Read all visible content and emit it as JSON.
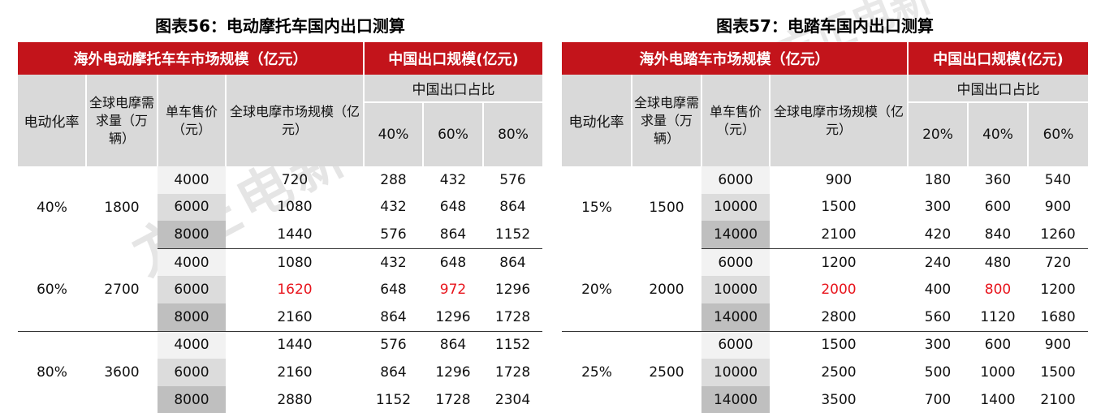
{
  "left": {
    "title": "图表56：电动摩托车国内出口测算",
    "header_market": "海外电动摩托车车市场规模（亿元）",
    "header_export": "中国出口规模(亿元)",
    "header_share": "中国出口占比",
    "col_rate": "电动化率",
    "col_demand": "全球电摩需求量（万辆）",
    "col_price": "单车售价（元）",
    "col_size": "全球电摩市场规模（亿元）",
    "shares": [
      "40%",
      "60%",
      "80%"
    ],
    "groups": [
      {
        "rate": "40%",
        "demand": "1800",
        "rows": [
          {
            "price": "4000",
            "size": "720",
            "vals": [
              "288",
              "432",
              "576"
            ]
          },
          {
            "price": "6000",
            "size": "1080",
            "vals": [
              "432",
              "648",
              "864"
            ]
          },
          {
            "price": "8000",
            "size": "1440",
            "vals": [
              "576",
              "864",
              "1152"
            ]
          }
        ]
      },
      {
        "rate": "60%",
        "demand": "2700",
        "rows": [
          {
            "price": "4000",
            "size": "1080",
            "vals": [
              "432",
              "648",
              "864"
            ]
          },
          {
            "price": "6000",
            "size": "1620",
            "vals": [
              "648",
              "972",
              "1296"
            ]
          },
          {
            "price": "8000",
            "size": "2160",
            "vals": [
              "864",
              "1296",
              "1728"
            ]
          }
        ]
      },
      {
        "rate": "80%",
        "demand": "3600",
        "rows": [
          {
            "price": "4000",
            "size": "1440",
            "vals": [
              "576",
              "864",
              "1152"
            ]
          },
          {
            "price": "6000",
            "size": "2160",
            "vals": [
              "864",
              "1296",
              "1728"
            ]
          },
          {
            "price": "8000",
            "size": "2880",
            "vals": [
              "1152",
              "1728",
              "2304"
            ]
          }
        ]
      }
    ]
  },
  "right": {
    "title": "图表57：电踏车国内出口测算",
    "header_market": "海外电踏车市场规模（亿元）",
    "header_export": "中国出口规模(亿元)",
    "header_share": "中国出口占比",
    "col_rate": "电动化率",
    "col_demand": "全球电摩需求量（万辆）",
    "col_price": "单车售价（元）",
    "col_size": "全球电摩市场规模（亿元）",
    "shares": [
      "20%",
      "40%",
      "60%"
    ],
    "groups": [
      {
        "rate": "15%",
        "demand": "1500",
        "rows": [
          {
            "price": "6000",
            "size": "900",
            "vals": [
              "180",
              "360",
              "540"
            ]
          },
          {
            "price": "10000",
            "size": "1500",
            "vals": [
              "300",
              "600",
              "900"
            ]
          },
          {
            "price": "14000",
            "size": "2100",
            "vals": [
              "420",
              "840",
              "1260"
            ]
          }
        ]
      },
      {
        "rate": "20%",
        "demand": "2000",
        "rows": [
          {
            "price": "6000",
            "size": "1200",
            "vals": [
              "240",
              "480",
              "720"
            ]
          },
          {
            "price": "10000",
            "size": "2000",
            "vals": [
              "400",
              "800",
              "1200"
            ]
          },
          {
            "price": "14000",
            "size": "2800",
            "vals": [
              "560",
              "1120",
              "1680"
            ]
          }
        ]
      },
      {
        "rate": "25%",
        "demand": "2500",
        "rows": [
          {
            "price": "6000",
            "size": "1500",
            "vals": [
              "300",
              "600",
              "900"
            ]
          },
          {
            "price": "10000",
            "size": "2500",
            "vals": [
              "500",
              "1000",
              "1500"
            ]
          },
          {
            "price": "14000",
            "size": "3500",
            "vals": [
              "700",
              "1400",
              "2100"
            ]
          }
        ]
      }
    ]
  },
  "watermark": "方正电新",
  "colors": {
    "header_red": "#c3141b",
    "highlight_red": "#e8141c"
  }
}
